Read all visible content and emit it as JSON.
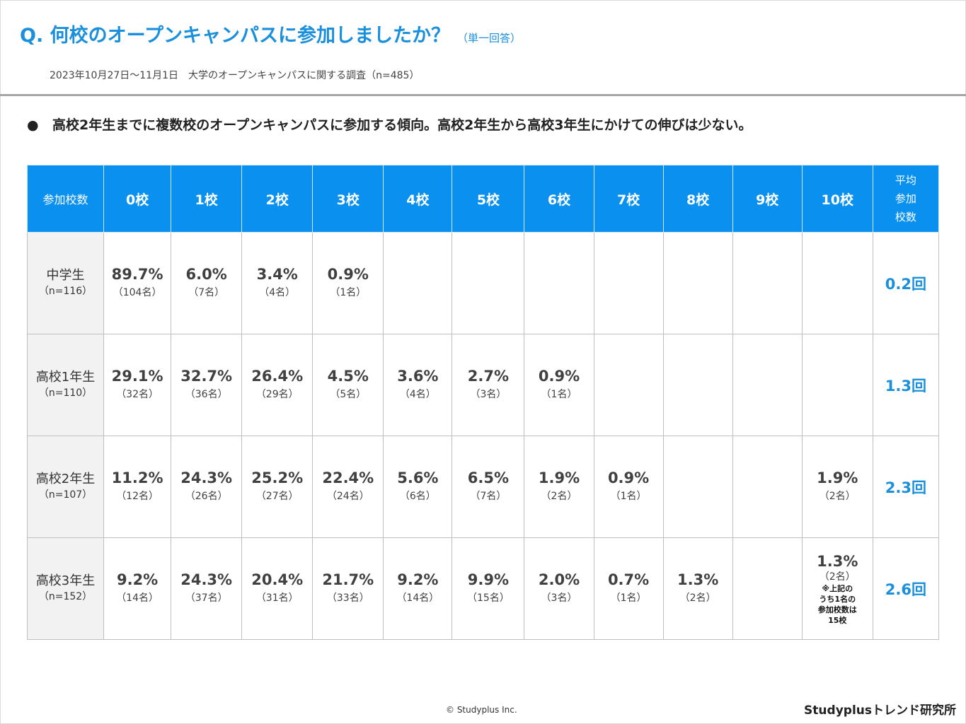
{
  "title": "Q. 何校のオープンキャンパスに参加しましたか？",
  "title_note": "（単一回答）",
  "survey_line": "2023年10月27日～11月1日　大学のオープンキャンパスに関する調査（n=485）",
  "bullet_symbol": "●",
  "summary": "高校2年生までに複数校のオープンキャンパスに参加する傾向。高校2年生から高校3年生にかけての伸びは少ない。",
  "table": {
    "row_header": "参加校数",
    "columns": [
      "0校",
      "1校",
      "2校",
      "3校",
      "4校",
      "5校",
      "6校",
      "7校",
      "8校",
      "9校",
      "10校"
    ],
    "avg_header": [
      "平均",
      "参加",
      "校数"
    ],
    "rows": [
      {
        "label": "中学生",
        "n": "（n=116）",
        "cells": [
          {
            "pct": "89.7%",
            "cnt": "（104名）"
          },
          {
            "pct": "6.0%",
            "cnt": "（7名）"
          },
          {
            "pct": "3.4%",
            "cnt": "（4名）"
          },
          {
            "pct": "0.9%",
            "cnt": "（1名）"
          },
          {
            "pct": "",
            "cnt": ""
          },
          {
            "pct": "",
            "cnt": ""
          },
          {
            "pct": "",
            "cnt": ""
          },
          {
            "pct": "",
            "cnt": ""
          },
          {
            "pct": "",
            "cnt": ""
          },
          {
            "pct": "",
            "cnt": ""
          },
          {
            "pct": "",
            "cnt": ""
          }
        ],
        "avg": "0.2回"
      },
      {
        "label": "高校1年生",
        "n": "（n=110）",
        "cells": [
          {
            "pct": "29.1%",
            "cnt": "（32名）"
          },
          {
            "pct": "32.7%",
            "cnt": "（36名）"
          },
          {
            "pct": "26.4%",
            "cnt": "（29名）"
          },
          {
            "pct": "4.5%",
            "cnt": "（5名）"
          },
          {
            "pct": "3.6%",
            "cnt": "（4名）"
          },
          {
            "pct": "2.7%",
            "cnt": "（3名）"
          },
          {
            "pct": "0.9%",
            "cnt": "（1名）"
          },
          {
            "pct": "",
            "cnt": ""
          },
          {
            "pct": "",
            "cnt": ""
          },
          {
            "pct": "",
            "cnt": ""
          },
          {
            "pct": "",
            "cnt": ""
          }
        ],
        "avg": "1.3回"
      },
      {
        "label": "高校2年生",
        "n": "（n=107）",
        "cells": [
          {
            "pct": "11.2%",
            "cnt": "（12名）"
          },
          {
            "pct": "24.3%",
            "cnt": "（26名）"
          },
          {
            "pct": "25.2%",
            "cnt": "（27名）"
          },
          {
            "pct": "22.4%",
            "cnt": "（24名）"
          },
          {
            "pct": "5.6%",
            "cnt": "（6名）"
          },
          {
            "pct": "6.5%",
            "cnt": "（7名）"
          },
          {
            "pct": "1.9%",
            "cnt": "（2名）"
          },
          {
            "pct": "0.9%",
            "cnt": "（1名）"
          },
          {
            "pct": "",
            "cnt": ""
          },
          {
            "pct": "",
            "cnt": ""
          },
          {
            "pct": "1.9%",
            "cnt": "（2名）"
          }
        ],
        "avg": "2.3回"
      },
      {
        "label": "高校3年生",
        "n": "（n=152）",
        "cells": [
          {
            "pct": "9.2%",
            "cnt": "（14名）"
          },
          {
            "pct": "24.3%",
            "cnt": "（37名）"
          },
          {
            "pct": "20.4%",
            "cnt": "（31名）"
          },
          {
            "pct": "21.7%",
            "cnt": "（33名）"
          },
          {
            "pct": "9.2%",
            "cnt": "（14名）"
          },
          {
            "pct": "9.9%",
            "cnt": "（15名）"
          },
          {
            "pct": "2.0%",
            "cnt": "（3名）"
          },
          {
            "pct": "0.7%",
            "cnt": "（1名）"
          },
          {
            "pct": "1.3%",
            "cnt": "（2名）"
          },
          {
            "pct": "",
            "cnt": ""
          },
          {
            "pct": "1.3%",
            "cnt": "（2名）",
            "note": [
              "※上記の",
              "うち1名の",
              "参加校数は",
              "15校"
            ]
          }
        ],
        "avg": "2.6回"
      }
    ]
  },
  "footer": {
    "copyright": "© Studyplus Inc.",
    "brand": "Studyplusトレンド研究所"
  },
  "colors": {
    "accent": "#1a8fdc",
    "header_bg": "#0a91f0",
    "row_label_bg": "#f2f2f2"
  }
}
